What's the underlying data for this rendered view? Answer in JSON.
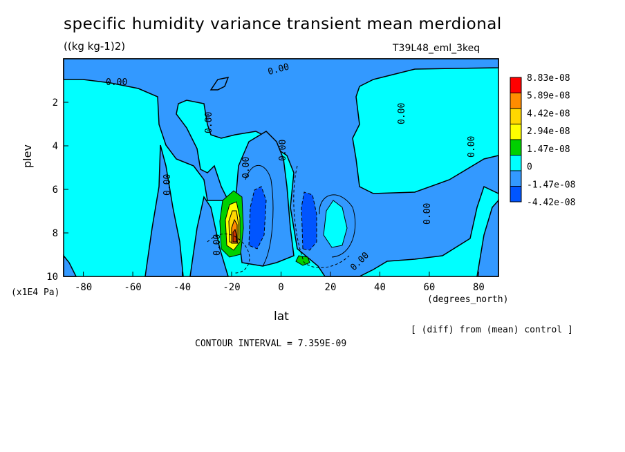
{
  "chart_data": {
    "type": "contour",
    "title": "specific humidity variance transient mean merdional",
    "units": "((kg kg-1)2)",
    "run_label": "T39L48_eml_3keq",
    "xlabel": "lat",
    "x_units": "(degrees_north)",
    "ylabel": "plev",
    "y_units": "(x1E4 Pa)",
    "xlim": [
      -88,
      88
    ],
    "ylim": [
      10,
      0
    ],
    "x_ticks": [
      "-80",
      "-60",
      "-40",
      "-20",
      "0",
      "20",
      "40",
      "60",
      "80"
    ],
    "y_ticks": [
      "2",
      "4",
      "6",
      "8",
      "10"
    ],
    "contour_label": "0.00",
    "colorbar_labels": [
      "8.83e-08",
      "5.89e-08",
      "4.42e-08",
      "2.94e-08",
      "1.47e-08",
      "0",
      "-1.47e-08",
      "-4.42e-08"
    ],
    "colorbar_colors": [
      "#ff0000",
      "#ff8c00",
      "#ffd700",
      "#ffff00",
      "#00d000",
      "#00ffff",
      "#3399ff",
      "#0055ff"
    ],
    "field_colors": {
      "background": "#00ffff",
      "negative": "#3399ff",
      "strong_negative": "#0055ff",
      "positive_1": "#00d000",
      "positive_2": "#ffd700",
      "positive_3": "#ff8c00",
      "positive_4": "#ff0000"
    },
    "note": "[ (diff) from (mean) control ]",
    "contour_interval": "CONTOUR INTERVAL = 7.359E-09"
  }
}
